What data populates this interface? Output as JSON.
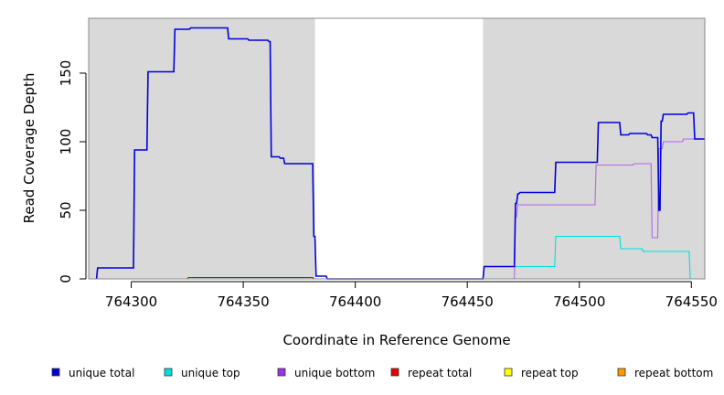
{
  "chart_data": {
    "type": "line",
    "title": "",
    "xlabel": "Coordinate in Reference Genome",
    "ylabel": "Read Coverage Depth",
    "xlim": [
      764281,
      764556
    ],
    "ylim": [
      0,
      190
    ],
    "x_ticks": [
      764300,
      764350,
      764400,
      764450,
      764500,
      764550
    ],
    "y_ticks": [
      0,
      50,
      100,
      150
    ],
    "shaded_regions": [
      {
        "x_start": 764281,
        "x_end": 764382
      },
      {
        "x_start": 764457,
        "x_end": 764556
      }
    ],
    "series": [
      {
        "name": "unique total",
        "color": "#0000dd",
        "x": [
          764284.5,
          764285,
          764301,
          764301.5,
          764307,
          764307.5,
          764313,
          764313.5,
          764319,
          764319.5,
          764326,
          764326.5,
          764343,
          764343.5,
          764352,
          764352.5,
          764361,
          764361.5,
          764362,
          764362.5,
          764366,
          764366.5,
          764368,
          764368.5,
          764381,
          764381.5,
          764382,
          764382.5,
          764387,
          764387.5,
          764457,
          764457.5,
          764471,
          764471.5,
          764472,
          764472.5,
          764473,
          764473.5,
          764489,
          764489.5,
          764508,
          764508.5,
          764518,
          764518.5,
          764522,
          764522.5,
          764530,
          764530.5,
          764532,
          764532.5,
          764535,
          764535.5,
          764536,
          764536.5,
          764537,
          764537.5,
          764548,
          764548.5,
          764551,
          764551.5,
          764556
        ],
        "y": [
          0,
          8,
          8,
          94,
          94,
          151,
          151,
          151,
          151,
          182,
          182,
          183,
          183,
          175,
          175,
          174,
          174,
          173,
          173,
          89,
          89,
          88,
          88,
          84,
          84,
          31,
          31,
          2,
          2,
          0,
          0,
          9,
          9,
          55,
          55,
          62,
          62,
          63,
          63,
          85,
          85,
          114,
          114,
          105,
          105,
          106,
          106,
          105,
          105,
          103,
          103,
          50,
          50,
          115,
          115,
          120,
          120,
          121,
          121,
          102,
          102
        ]
      },
      {
        "name": "unique top",
        "color": "#00dddd",
        "x": [
          764457,
          764457.5,
          764471,
          764471.5,
          764489,
          764489.5,
          764518,
          764518.5,
          764528,
          764528.5,
          764549,
          764549.5,
          764556
        ],
        "y": [
          0,
          9,
          9,
          9,
          9,
          31,
          31,
          22,
          22,
          20,
          20,
          0,
          0
        ]
      },
      {
        "name": "unique bottom",
        "color": "#b366e6",
        "x": [
          764457,
          764471,
          764471.5,
          764472,
          764472.5,
          764507,
          764507.5,
          764524,
          764524.5,
          764532,
          764532.5,
          764535,
          764535.5,
          764537,
          764537.5,
          764546,
          764546.5,
          764556
        ],
        "y": [
          0,
          0,
          45,
          45,
          54,
          54,
          83,
          83,
          84,
          84,
          30,
          30,
          95,
          95,
          100,
          100,
          102,
          102
        ]
      },
      {
        "name": "repeat total",
        "color": "#e60000",
        "x": [
          764285,
          764325,
          764325.5,
          764381,
          764381.5,
          764556
        ],
        "y": [
          0,
          0,
          1,
          1,
          0,
          0
        ]
      },
      {
        "name": "repeat top",
        "color": "#e6e600",
        "x": [
          764285,
          764556
        ],
        "y": [
          0,
          0
        ]
      },
      {
        "name": "repeat bottom",
        "color": "#ff9900",
        "x": [
          764285,
          764325,
          764325.5,
          764381,
          764381.5,
          764556
        ],
        "y": [
          0,
          0,
          1,
          1,
          0,
          0
        ]
      }
    ],
    "legend": {
      "placement": "bottom",
      "items": [
        {
          "label": "unique total",
          "color": "#0000dd"
        },
        {
          "label": "unique top",
          "color": "#00dddd"
        },
        {
          "label": "unique bottom",
          "color": "#9933e6"
        },
        {
          "label": "repeat total",
          "color": "#e60000"
        },
        {
          "label": "repeat top",
          "color": "#ffff00"
        },
        {
          "label": "repeat bottom",
          "color": "#ff9900"
        }
      ]
    },
    "shade_color": "#d9d9d9",
    "grid": false
  }
}
